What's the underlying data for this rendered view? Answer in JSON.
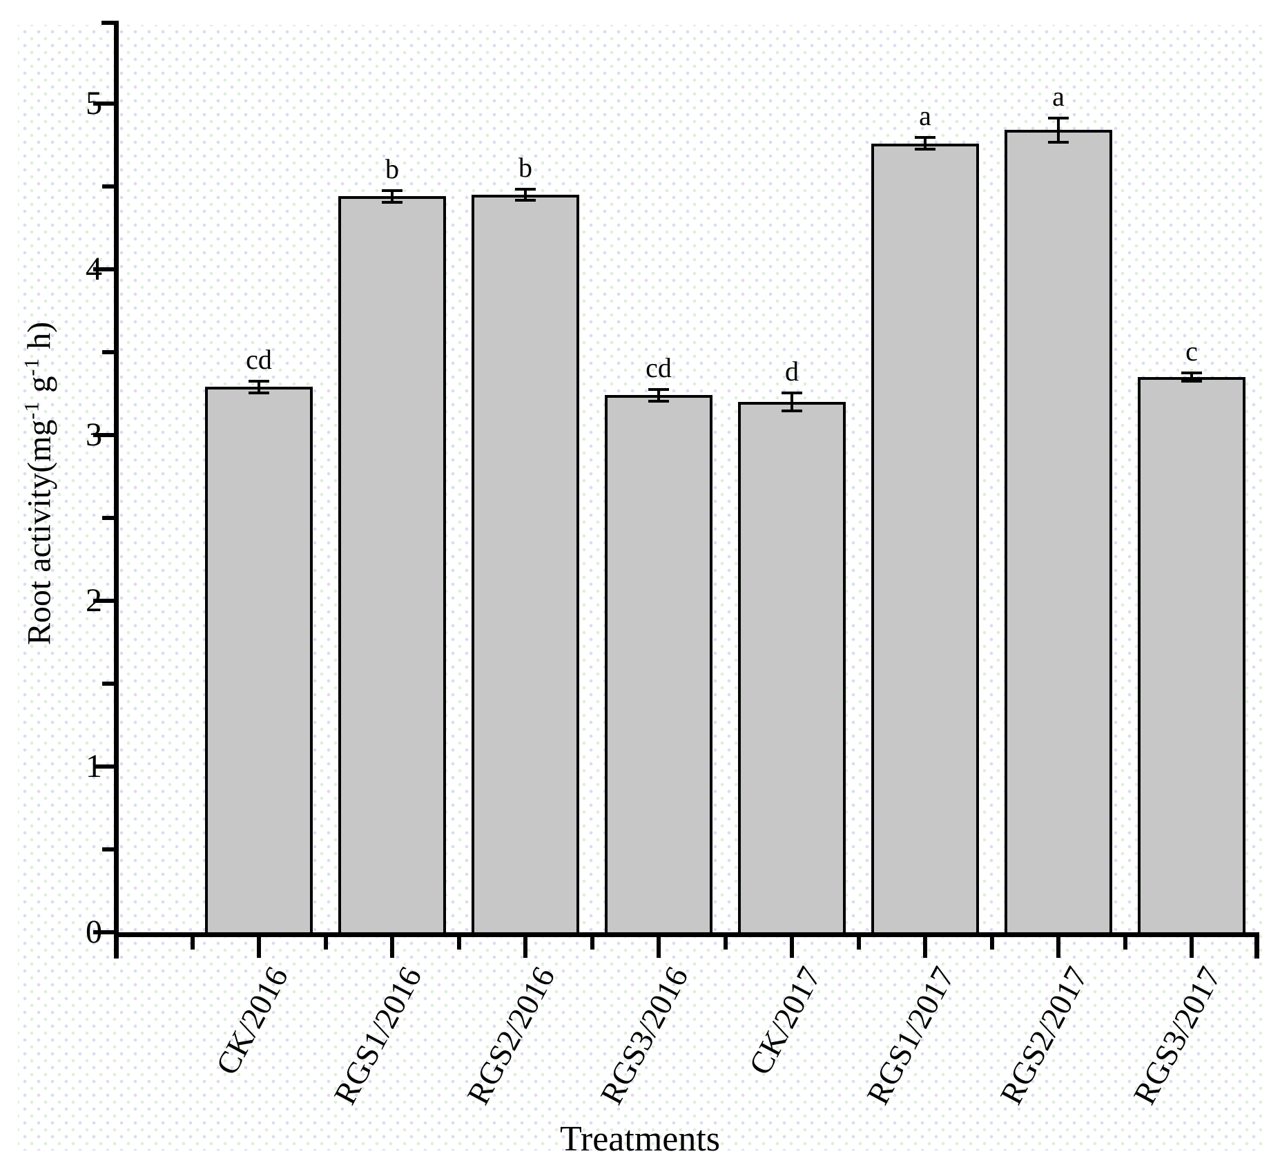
{
  "chart_data": {
    "type": "bar",
    "title": "",
    "xlabel": "Treatments",
    "ylabel_text": "Root activity(mg-1 g-1 h)",
    "ylabel_parts": {
      "prefix": "Root activity(mg",
      "sup1": "-1",
      "mid": " g",
      "sup2": "-1",
      "suffix": " h)"
    },
    "categories": [
      "CK/2016",
      "RGS1/2016",
      "RGS2/2016",
      "RGS3/2016",
      "CK/2017",
      "RGS1/2017",
      "RGS2/2017",
      "RGS3/2017"
    ],
    "values": [
      3.29,
      4.44,
      4.45,
      3.24,
      3.2,
      4.76,
      4.84,
      3.35
    ],
    "errors": [
      0.03,
      0.03,
      0.03,
      0.03,
      0.05,
      0.03,
      0.07,
      0.02
    ],
    "sig_letters": [
      "cd",
      "b",
      "b",
      "cd",
      "d",
      "a",
      "a",
      "c"
    ],
    "yticks": [
      0,
      1,
      2,
      3,
      4,
      5
    ],
    "ylim": [
      0,
      5.5
    ],
    "y_minor_step": 0.5,
    "grid": false,
    "legend": null,
    "bar_fill_color": "#c7c7c7",
    "bar_border_color": "#000000",
    "axis_color": "#000000",
    "background_color": "#ffffff"
  }
}
